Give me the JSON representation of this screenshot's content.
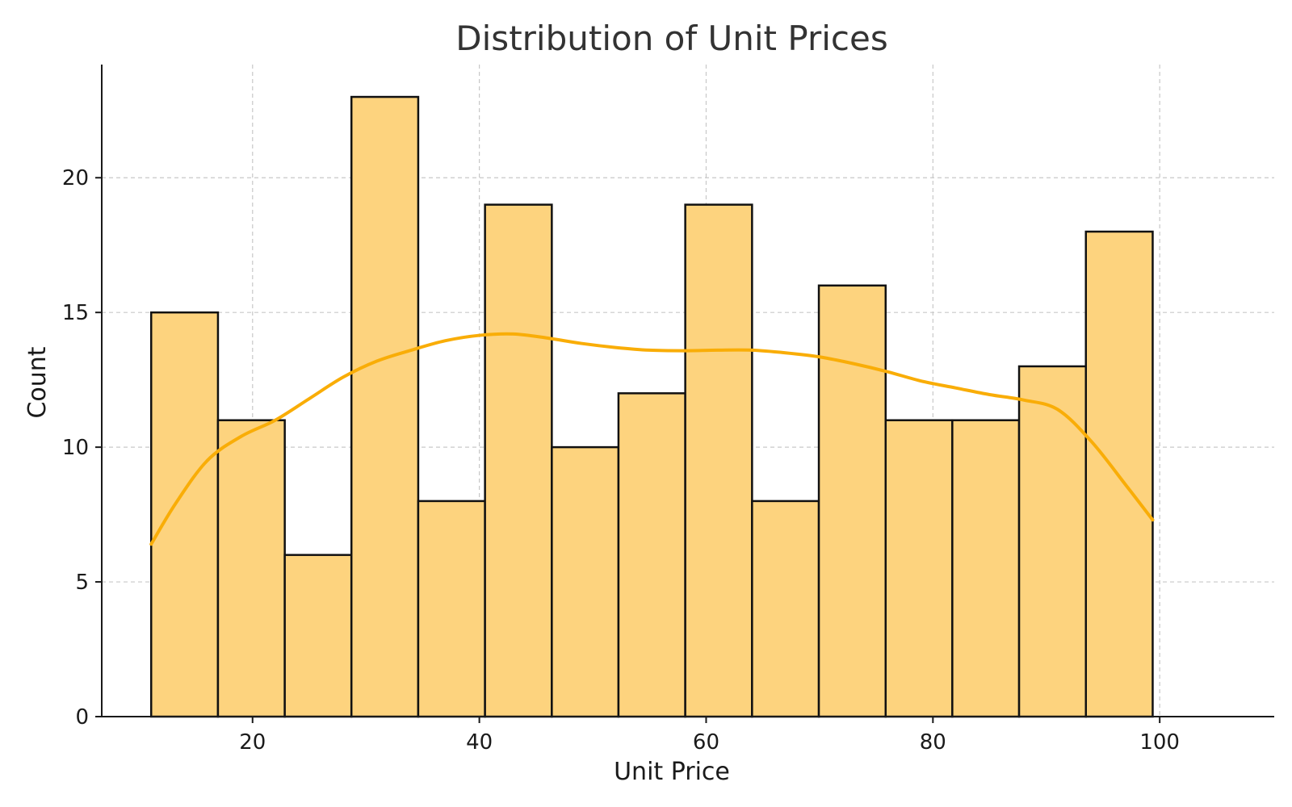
{
  "chart_data": {
    "type": "bar",
    "title": "Distribution of Unit Prices",
    "xlabel": "Unit Price",
    "ylabel": "Count",
    "xlim": [
      6.7,
      110.1
    ],
    "ylim": [
      0,
      24.2
    ],
    "xticks": [
      20,
      40,
      60,
      80,
      100
    ],
    "yticks": [
      0,
      5,
      10,
      15,
      20
    ],
    "grid": true,
    "bin_edges": [
      11.06,
      16.95,
      22.84,
      28.72,
      34.61,
      40.5,
      46.39,
      52.27,
      58.16,
      64.05,
      69.94,
      75.83,
      81.71,
      87.6,
      93.49,
      99.38
    ],
    "values": [
      15,
      11,
      6,
      23,
      8,
      19,
      10,
      12,
      19,
      8,
      16,
      11,
      11,
      13,
      18
    ],
    "kde": {
      "x": [
        11.06,
        13.2,
        16,
        19,
        22,
        25,
        28,
        31,
        34,
        37,
        40,
        43,
        46,
        49,
        52,
        55,
        58,
        61,
        64,
        67,
        70,
        73,
        76,
        79,
        82,
        85,
        88,
        91,
        94,
        97,
        99.38
      ],
      "y": [
        6.4,
        7.9,
        9.5,
        10.4,
        11.0,
        11.8,
        12.6,
        13.2,
        13.6,
        13.95,
        14.15,
        14.2,
        14.05,
        13.85,
        13.7,
        13.6,
        13.58,
        13.6,
        13.6,
        13.5,
        13.35,
        13.1,
        12.8,
        12.45,
        12.2,
        11.95,
        11.75,
        11.4,
        10.2,
        8.6,
        7.3
      ]
    },
    "colors": {
      "bar_fill": "#fdd37e",
      "bar_edge": "#111111",
      "kde_line": "#f9ad07"
    }
  }
}
